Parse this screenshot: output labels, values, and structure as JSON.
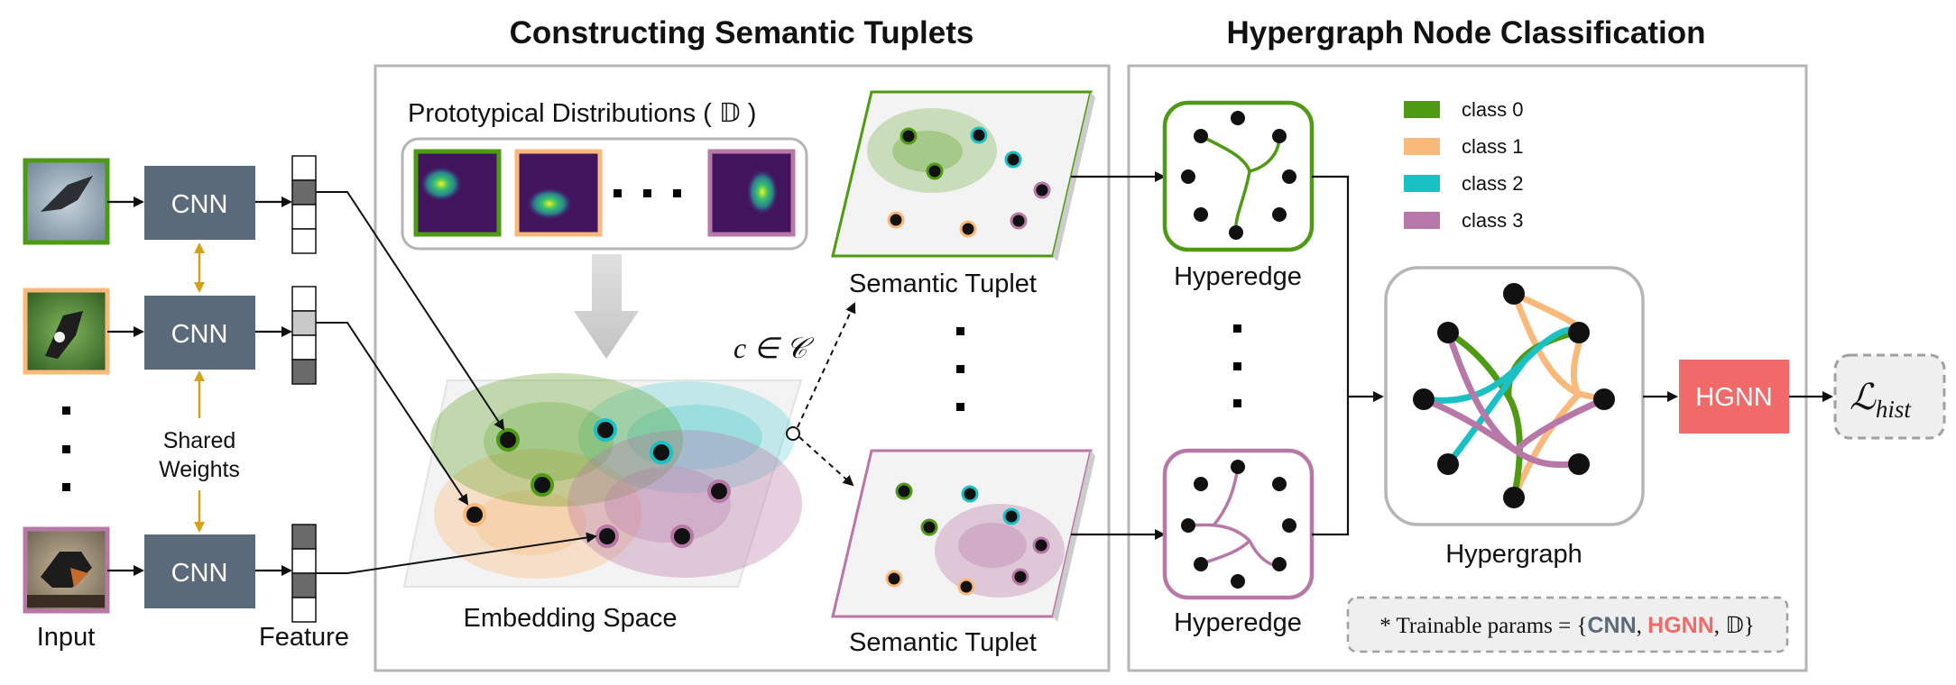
{
  "headings": {
    "tuplets": "Constructing Semantic Tuplets",
    "hypergraph": "Hypergraph Node Classification"
  },
  "labels": {
    "input": "Input",
    "feature": "Feature",
    "cnn": "CNN",
    "shared_line1": "Shared",
    "shared_line2": "Weights",
    "prototypical": "Prototypical Distributions (",
    "proto_symbol": "𝔻",
    "proto_close": ")",
    "embedding_space": "Embedding Space",
    "semantic_tuplet": "Semantic Tuplet",
    "c_in_C": "c ∈ 𝒞",
    "hyperedge": "Hyperedge",
    "hypergraph": "Hypergraph",
    "hgnn": "HGNN",
    "loss": "ℒ",
    "loss_sub": "hist",
    "trainable_prefix": "* Trainable params = {",
    "trainable_cnn": "CNN",
    "trainable_sep1": ", ",
    "trainable_hgnn": "HGNN",
    "trainable_sep2": ", ",
    "trainable_d": "𝔻",
    "trainable_suffix": "}"
  },
  "legend": [
    {
      "label": "class 0",
      "color": "#4f9a13"
    },
    {
      "label": "class 1",
      "color": "#f9b97a"
    },
    {
      "label": "class 2",
      "color": "#19c0c4"
    },
    {
      "label": "class 3",
      "color": "#b778a7"
    }
  ],
  "colors": {
    "cnn_box": "#5a6a7a",
    "hgnn_box": "#f06a6a",
    "arrow_shared": "#d6a117",
    "class0": "#4f9a13",
    "class1": "#f9b97a",
    "class2": "#19c0c4",
    "class3": "#b778a7",
    "proto_bg": "#43145e"
  },
  "icons": {
    "inputs": [
      "bird-image-icon",
      "bird-image-icon",
      "bird-image-icon"
    ],
    "vertical_dots": "vertical-ellipsis-icon",
    "horizontal_dots": "horizontal-ellipsis-icon"
  }
}
